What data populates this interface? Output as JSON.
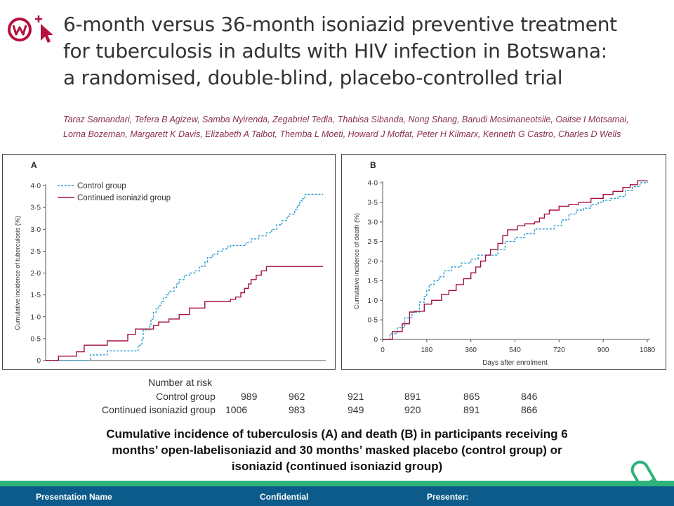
{
  "title_lines": [
    "6-month versus 36-month isoniazid preventive treatment",
    "for tuberculosis in adults with HIV infection in Botswana:",
    "a randomised, double-blind, placebo-controlled trial"
  ],
  "author_lines": [
    "Taraz Samandari, Tefera B Agizew, Samba Nyirenda, Zegabriel Tedla, Thabisa Sibanda, Nong Shang, Barudi Mosimaneotsile, Oaitse I Motsamai,",
    "Lorna Bozeman, Margarett K Davis, Elizabeth A Talbot, Themba L Moeti, Howard J Moffat, Peter H Kilmarx, Kenneth G Castro, Charles D Wells"
  ],
  "colors": {
    "control": "#2a9bd1",
    "continued": "#a3123f",
    "footer": "#0d5b8a",
    "accent": "#2db37a",
    "logo": "#b5123e"
  },
  "chart_data": [
    {
      "panel": "A",
      "type": "line",
      "step": true,
      "xlabel": "",
      "ylabel": "Cumulative incidence of tuberculosis (%)",
      "xlim": [
        0,
        1080
      ],
      "ylim": [
        0,
        4.0
      ],
      "y_ticks": [
        "0",
        "0·5",
        "1·0",
        "1·5",
        "2·0",
        "2·5",
        "3·0",
        "3·5",
        "4·0"
      ],
      "x_ticks": [],
      "legend": "top-left",
      "series": [
        {
          "name": "Control group",
          "style": "dashed",
          "x": [
            0,
            150,
            175,
            200,
            240,
            320,
            360,
            375,
            380,
            395,
            405,
            410,
            420,
            430,
            440,
            450,
            460,
            470,
            480,
            500,
            510,
            520,
            540,
            560,
            580,
            600,
            620,
            630,
            650,
            670,
            690,
            705,
            720,
            760,
            780,
            800,
            830,
            860,
            880,
            900,
            920,
            940,
            950,
            960,
            970,
            980,
            990,
            1000,
            1010,
            1020,
            1030,
            1040,
            1080
          ],
          "y": [
            0,
            0,
            0.13,
            0.13,
            0.22,
            0.22,
            0.35,
            0.5,
            0.7,
            0.7,
            0.78,
            0.95,
            1.1,
            1.18,
            1.26,
            1.35,
            1.44,
            1.5,
            1.58,
            1.67,
            1.75,
            1.85,
            1.95,
            2.0,
            2.05,
            2.15,
            2.25,
            2.35,
            2.43,
            2.5,
            2.55,
            2.6,
            2.63,
            2.63,
            2.7,
            2.78,
            2.85,
            2.92,
            3.0,
            3.1,
            3.2,
            3.3,
            3.35,
            3.35,
            3.45,
            3.55,
            3.65,
            3.7,
            3.8,
            3.8,
            3.8,
            3.8,
            3.8
          ]
        },
        {
          "name": "Continued isoniazid group",
          "style": "solid",
          "x": [
            0,
            50,
            120,
            150,
            240,
            320,
            350,
            420,
            440,
            480,
            520,
            560,
            620,
            700,
            720,
            740,
            760,
            775,
            790,
            800,
            820,
            840,
            860,
            900,
            920,
            960,
            1000,
            1040,
            1080
          ],
          "y": [
            0,
            0.1,
            0.2,
            0.35,
            0.45,
            0.6,
            0.72,
            0.8,
            0.88,
            0.95,
            1.05,
            1.2,
            1.35,
            1.35,
            1.4,
            1.45,
            1.55,
            1.65,
            1.75,
            1.85,
            1.95,
            2.05,
            2.15,
            2.15,
            2.15,
            2.15,
            2.15,
            2.15,
            2.15
          ]
        }
      ]
    },
    {
      "panel": "B",
      "type": "line",
      "step": true,
      "xlabel": "Days after enrolment",
      "ylabel": "Cumulative incidence of death (%)",
      "xlim": [
        0,
        1080
      ],
      "ylim": [
        0,
        4.0
      ],
      "y_ticks": [
        "0",
        "0·5",
        "1·0",
        "1·5",
        "2·0",
        "2·5",
        "3·0",
        "3·5",
        "4·0"
      ],
      "x_ticks": [
        "0",
        "180",
        "360",
        "540",
        "720",
        "900",
        "1080"
      ],
      "legend": "none",
      "series": [
        {
          "name": "Control group",
          "style": "dashed",
          "x": [
            0,
            30,
            60,
            90,
            120,
            150,
            170,
            180,
            190,
            210,
            230,
            250,
            280,
            320,
            360,
            390,
            410,
            440,
            470,
            500,
            540,
            580,
            620,
            680,
            700,
            730,
            760,
            790,
            820,
            850,
            880,
            900,
            930,
            960,
            990,
            1020,
            1050,
            1080
          ],
          "y": [
            0,
            0.15,
            0.3,
            0.55,
            0.7,
            0.95,
            1.1,
            1.25,
            1.4,
            1.5,
            1.6,
            1.75,
            1.85,
            1.95,
            2.05,
            2.15,
            2.15,
            2.15,
            2.3,
            2.5,
            2.6,
            2.7,
            2.82,
            2.82,
            2.9,
            3.05,
            3.2,
            3.3,
            3.35,
            3.45,
            3.5,
            3.55,
            3.6,
            3.65,
            3.8,
            3.9,
            4.0,
            4.05
          ]
        },
        {
          "name": "Continued isoniazid group",
          "style": "solid",
          "x": [
            0,
            40,
            80,
            110,
            130,
            170,
            200,
            240,
            270,
            300,
            330,
            360,
            380,
            400,
            420,
            440,
            470,
            490,
            510,
            550,
            580,
            620,
            640,
            660,
            680,
            720,
            760,
            800,
            850,
            900,
            940,
            980,
            1010,
            1040,
            1080
          ],
          "y": [
            0,
            0.2,
            0.4,
            0.7,
            0.72,
            0.9,
            1.0,
            1.15,
            1.25,
            1.4,
            1.55,
            1.7,
            1.85,
            2.0,
            2.15,
            2.3,
            2.45,
            2.65,
            2.8,
            2.9,
            2.95,
            3.0,
            3.1,
            3.2,
            3.3,
            3.4,
            3.45,
            3.5,
            3.6,
            3.7,
            3.78,
            3.88,
            3.95,
            4.05,
            4.05
          ]
        }
      ]
    }
  ],
  "risk_table": {
    "heading": "Number at risk",
    "rows": [
      {
        "label": "Control group",
        "values": [
          "989",
          "962",
          "921",
          "891",
          "865",
          "846"
        ]
      },
      {
        "label": "Continued isoniazid group",
        "values": [
          "1006",
          "983",
          "949",
          "920",
          "891",
          "866"
        ]
      }
    ]
  },
  "caption_lines": [
    "Cumulative incidence of tuberculosis (A) and death (B) in participants receiving 6",
    "months’ open-labelisoniazid  and 30 months’ masked placebo (control group) or",
    "isoniazid (continued isoniazid group)"
  ],
  "footer": {
    "left": "Presentation Name",
    "center": "Confidential",
    "right": "Presenter:"
  },
  "icons": {
    "logo": "lancet-logo-icon",
    "cursor": "cursor-arrow-icon",
    "pill": "pill-capsule-icon"
  }
}
